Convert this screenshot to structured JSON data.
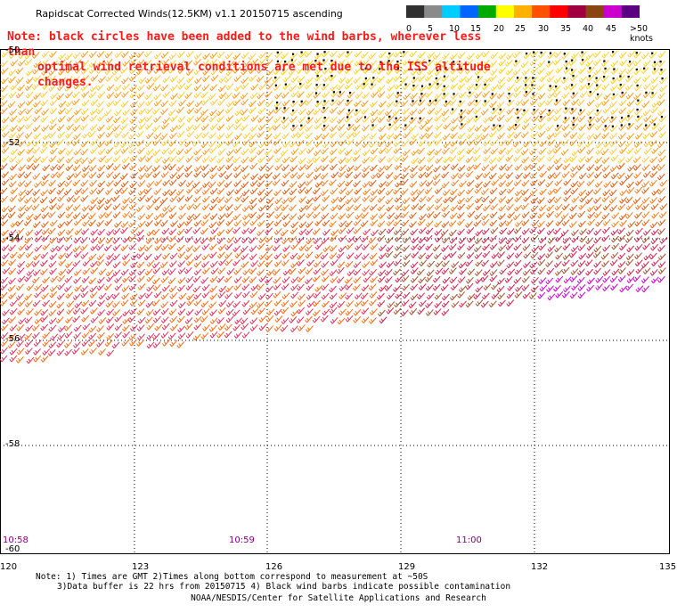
{
  "title": "Rapidscat Corrected Winds(12.5KM) v1.1 20150715 ascending",
  "note": {
    "line1": "Note: black circles have been added to the wind barbs, wherever less than",
    "line2": "optimal wind retrieval conditions are met due to the ISS altitude changes."
  },
  "legend": {
    "labels": [
      "0",
      "5",
      "10",
      "15",
      "20",
      "25",
      "30",
      "35",
      "40",
      "45",
      ">50 knots"
    ],
    "colors": [
      "#303030",
      "#8a8a8a",
      "#00ccff",
      "#0066ff",
      "#00aa00",
      "#ffff00",
      "#ffb000",
      "#ff5000",
      "#ff0000",
      "#a00040",
      "#8b4513",
      "#cc00cc",
      "#5a0080"
    ]
  },
  "axes": {
    "lat_labels": [
      "-50",
      "-52",
      "-54",
      "-56",
      "-58",
      "-60"
    ],
    "lon_labels": [
      "120",
      "123",
      "126",
      "129",
      "132",
      "135"
    ]
  },
  "times": [
    "10:58",
    "10:59",
    "11:00"
  ],
  "footnotes": {
    "line1": "Note: 1) Times are GMT 2)Times along bottom correspond to measurement at ~50S",
    "line2": "3)Data buffer is 22 hrs from 20150715 4) Black wind barbs indicate possible contamination"
  },
  "credit": "NOAA/NESDIS/Center for Satellite Applications and Research"
}
